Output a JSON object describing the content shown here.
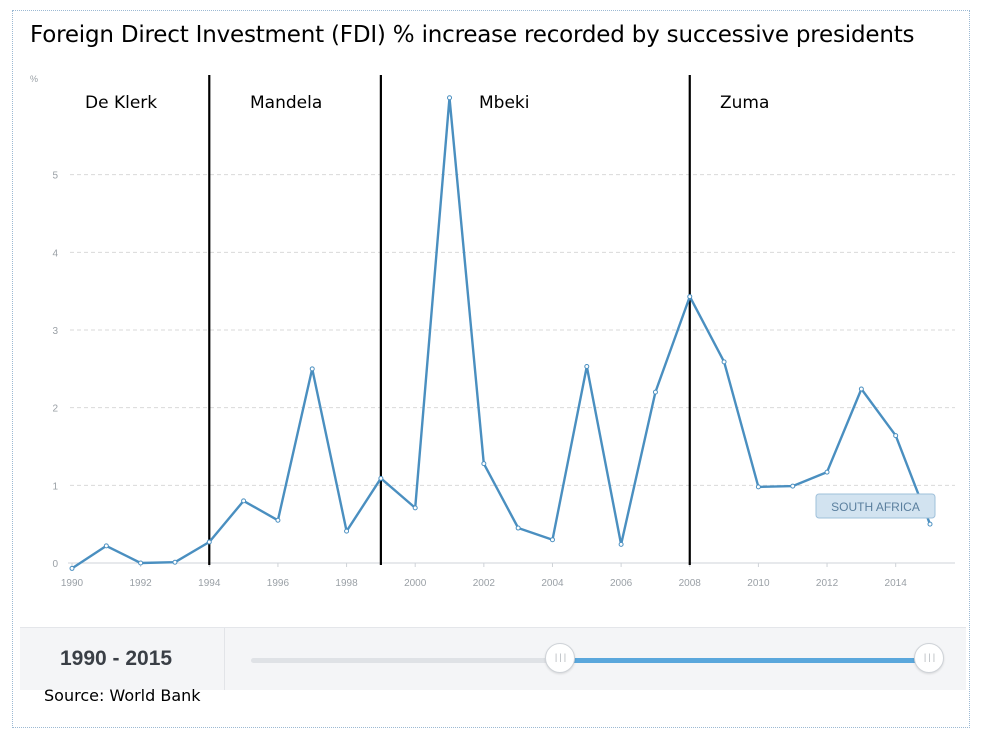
{
  "page": {
    "title": "Foreign Direct Investment (FDI) % increase recorded by successive presidents",
    "source": "Source: World Bank",
    "range_label": "1990 - 2015"
  },
  "chart_data": {
    "type": "line",
    "title": "Foreign Direct Investment (FDI) % increase recorded by successive presidents",
    "ylabel": "%",
    "xlabel": "",
    "xlim": [
      1990,
      2015
    ],
    "ylim": [
      0,
      6
    ],
    "x_ticks": [
      1990,
      1992,
      1994,
      1996,
      1998,
      2000,
      2002,
      2004,
      2006,
      2008,
      2010,
      2012,
      2014
    ],
    "y_ticks": [
      0,
      1,
      2,
      3,
      4,
      5
    ],
    "grid": true,
    "series": [
      {
        "name": "SOUTH AFRICA",
        "color": "#4a8fc0",
        "x": [
          1990,
          1991,
          1992,
          1993,
          1994,
          1995,
          1996,
          1997,
          1998,
          1999,
          2000,
          2001,
          2002,
          2003,
          2004,
          2005,
          2006,
          2007,
          2008,
          2009,
          2010,
          2011,
          2012,
          2013,
          2014,
          2015
        ],
        "values": [
          -0.07,
          0.22,
          0.0,
          0.01,
          0.27,
          0.8,
          0.55,
          2.5,
          0.41,
          1.09,
          0.71,
          5.99,
          1.28,
          0.45,
          0.3,
          2.53,
          0.24,
          2.2,
          3.43,
          2.59,
          0.98,
          0.99,
          1.17,
          2.24,
          1.64,
          0.5
        ]
      }
    ],
    "periods": [
      {
        "label": "De Klerk",
        "start": 1990,
        "end": 1994
      },
      {
        "label": "Mandela",
        "start": 1994,
        "end": 1999
      },
      {
        "label": "Mbeki",
        "start": 1999,
        "end": 2008
      },
      {
        "label": "Zuma",
        "start": 2008,
        "end": 2015
      }
    ],
    "divider_years": [
      1994,
      1999,
      2008
    ],
    "series_label": "SOUTH AFRICA"
  }
}
